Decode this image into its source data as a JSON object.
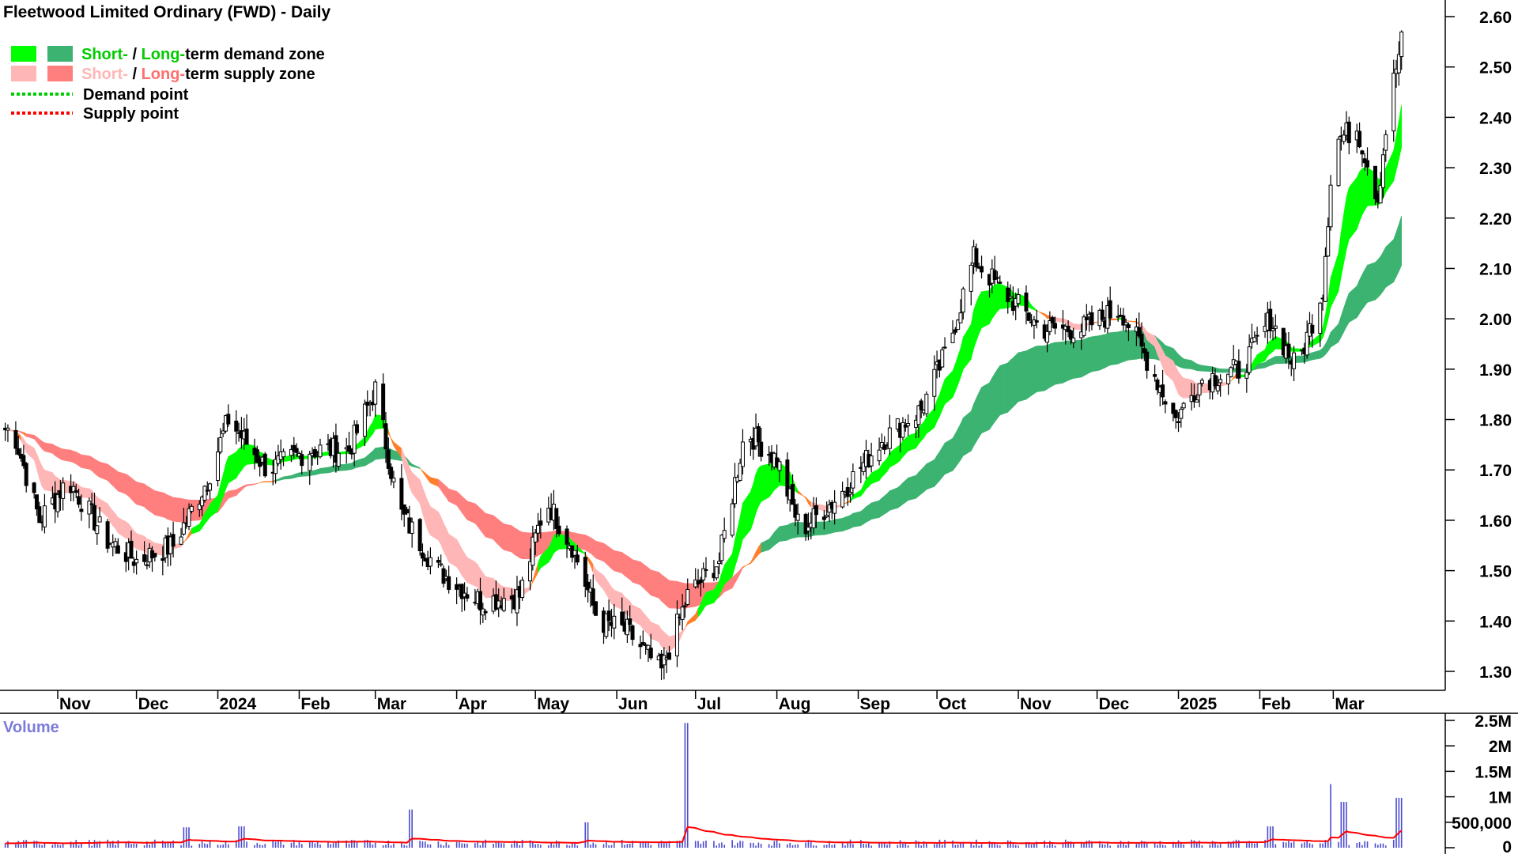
{
  "title": "Fleetwood Limited Ordinary (FWD) - Daily",
  "legend": {
    "demand_zone": {
      "short": "Short-",
      "sep": " / ",
      "long": "Long-",
      "rest": "term demand zone"
    },
    "supply_zone": {
      "short": "Short-",
      "sep": " / ",
      "long": "Long-",
      "rest": "term supply zone"
    },
    "demand_point": "Demand point",
    "supply_point": "Supply point"
  },
  "colors": {
    "short_demand": "#00ff00",
    "long_demand": "#3cb371",
    "short_supply": "#ffb6b6",
    "long_supply": "#ff7f7f",
    "transition": "#ff7f2a",
    "volume_bar": "#4b4bd0",
    "volume_avg": "#ff0000",
    "volume_label": "#7b7bd8"
  },
  "volume_panel": {
    "label": "Volume"
  },
  "chart_data": {
    "type": "candlestick",
    "title": "Fleetwood Limited Ordinary (FWD) - Daily",
    "x_tick_labels": [
      "Nov",
      "Dec",
      "2024",
      "Feb",
      "Mar",
      "Apr",
      "May",
      "Jun",
      "Jul",
      "Aug",
      "Sep",
      "Oct",
      "Nov",
      "Dec",
      "2025",
      "Feb",
      "Mar"
    ],
    "y_ticks": [
      1.3,
      1.4,
      1.5,
      1.6,
      1.7,
      1.8,
      1.9,
      2.0,
      2.1,
      2.2,
      2.3,
      2.4,
      2.5,
      2.6
    ],
    "y_tick_labels": [
      "1.30",
      "1.40",
      "1.50",
      "1.60",
      "1.70",
      "1.80",
      "1.90",
      "2.00",
      "2.10",
      "2.20",
      "2.30",
      "2.40",
      "2.50",
      "2.60"
    ],
    "ylim": [
      1.25,
      2.65
    ],
    "price_path": [
      {
        "date": "2023-10-15",
        "close": 1.78
      },
      {
        "date": "2023-10-25",
        "close": 1.6
      },
      {
        "date": "2023-11-05",
        "close": 1.68
      },
      {
        "date": "2023-11-20",
        "close": 1.56
      },
      {
        "date": "2023-12-01",
        "close": 1.52
      },
      {
        "date": "2023-12-15",
        "close": 1.55
      },
      {
        "date": "2023-12-28",
        "close": 1.68
      },
      {
        "date": "2024-01-05",
        "close": 1.8
      },
      {
        "date": "2024-01-20",
        "close": 1.7
      },
      {
        "date": "2024-02-05",
        "close": 1.74
      },
      {
        "date": "2024-02-20",
        "close": 1.74
      },
      {
        "date": "2024-03-01",
        "close": 1.86
      },
      {
        "date": "2024-03-10",
        "close": 1.62
      },
      {
        "date": "2024-03-25",
        "close": 1.5
      },
      {
        "date": "2024-04-10",
        "close": 1.44
      },
      {
        "date": "2024-04-25",
        "close": 1.45
      },
      {
        "date": "2024-05-05",
        "close": 1.64
      },
      {
        "date": "2024-05-15",
        "close": 1.55
      },
      {
        "date": "2024-05-25",
        "close": 1.4
      },
      {
        "date": "2024-06-05",
        "close": 1.38
      },
      {
        "date": "2024-06-18",
        "close": 1.3
      },
      {
        "date": "2024-06-28",
        "close": 1.45
      },
      {
        "date": "2024-07-10",
        "close": 1.52
      },
      {
        "date": "2024-07-20",
        "close": 1.78
      },
      {
        "date": "2024-08-01",
        "close": 1.72
      },
      {
        "date": "2024-08-10",
        "close": 1.58
      },
      {
        "date": "2024-08-25",
        "close": 1.65
      },
      {
        "date": "2024-09-10",
        "close": 1.76
      },
      {
        "date": "2024-09-25",
        "close": 1.82
      },
      {
        "date": "2024-10-05",
        "close": 1.94
      },
      {
        "date": "2024-10-15",
        "close": 2.12
      },
      {
        "date": "2024-10-25",
        "close": 2.06
      },
      {
        "date": "2024-11-10",
        "close": 1.98
      },
      {
        "date": "2024-11-25",
        "close": 1.98
      },
      {
        "date": "2024-12-10",
        "close": 2.02
      },
      {
        "date": "2024-12-20",
        "close": 1.92
      },
      {
        "date": "2024-12-31",
        "close": 1.8
      },
      {
        "date": "2025-01-10",
        "close": 1.88
      },
      {
        "date": "2025-01-25",
        "close": 1.9
      },
      {
        "date": "2025-02-05",
        "close": 2.0
      },
      {
        "date": "2025-02-15",
        "close": 1.9
      },
      {
        "date": "2025-02-25",
        "close": 2.06
      },
      {
        "date": "2025-03-01",
        "close": 2.35
      },
      {
        "date": "2025-03-10",
        "close": 2.38
      },
      {
        "date": "2025-03-18",
        "close": 2.24
      },
      {
        "date": "2025-03-22",
        "close": 2.42
      },
      {
        "date": "2025-03-27",
        "close": 2.55
      }
    ],
    "volume_y_tick_labels": [
      "0",
      "500,000",
      "1M",
      "1.5M",
      "2M",
      "2.5M"
    ],
    "volume_ticks": [
      0,
      500000,
      1000000,
      1500000,
      2000000,
      2500000
    ],
    "volume_ylim": [
      0,
      2700000
    ],
    "volume_spikes": [
      {
        "date": "2024-06-28",
        "volume": 2450000
      },
      {
        "date": "2024-03-15",
        "volume": 750000
      },
      {
        "date": "2024-05-20",
        "volume": 500000
      },
      {
        "date": "2025-03-01",
        "volume": 1250000
      },
      {
        "date": "2025-03-05",
        "volume": 900000
      },
      {
        "date": "2025-03-26",
        "volume": 980000
      },
      {
        "date": "2025-02-05",
        "volume": 420000
      },
      {
        "date": "2024-01-10",
        "volume": 420000
      },
      {
        "date": "2023-12-20",
        "volume": 400000
      }
    ],
    "series": [
      {
        "name": "Short-term demand zone"
      },
      {
        "name": "Long-term demand zone"
      },
      {
        "name": "Short-term supply zone"
      },
      {
        "name": "Long-term supply zone"
      },
      {
        "name": "Demand point"
      },
      {
        "name": "Supply point"
      }
    ]
  }
}
